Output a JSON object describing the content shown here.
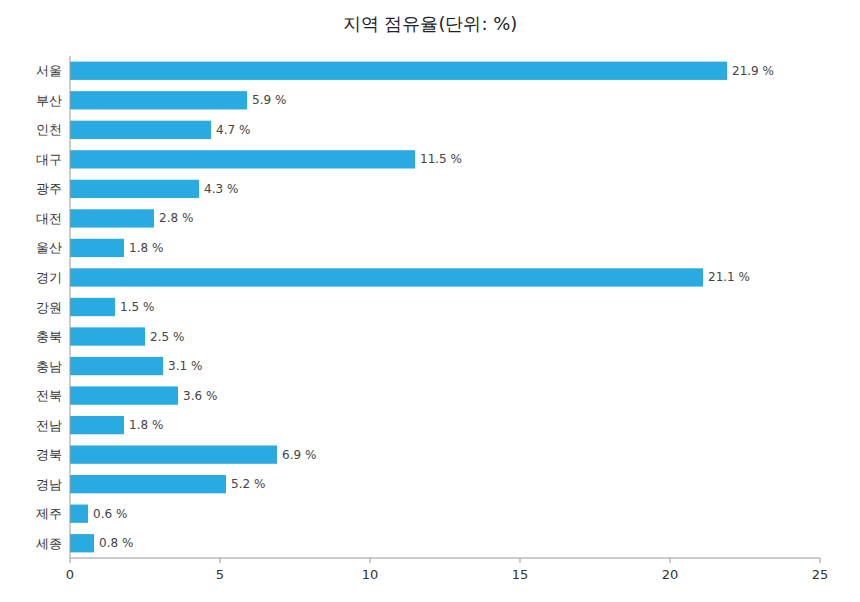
{
  "chart_data": {
    "type": "bar",
    "orientation": "horizontal",
    "title": "지역 점유율(단위: %)",
    "categories": [
      "세종",
      "제주",
      "경남",
      "경북",
      "전남",
      "전북",
      "충남",
      "충북",
      "강원",
      "경기",
      "울산",
      "대전",
      "광주",
      "대구",
      "인천",
      "부산",
      "서울"
    ],
    "values": [
      0.8,
      0.6,
      5.2,
      6.9,
      1.8,
      3.6,
      3.1,
      2.5,
      1.5,
      21.1,
      1.8,
      2.8,
      4.3,
      11.5,
      4.7,
      5.9,
      21.9
    ],
    "value_labels": [
      "0.8 %",
      "0.6 %",
      "5.2 %",
      "6.9 %",
      "1.8 %",
      "3.6 %",
      "3.1 %",
      "2.5 %",
      "1.5 %",
      "21.1 %",
      "1.8 %",
      "2.8 %",
      "4.3 %",
      "11.5 %",
      "4.7 %",
      "5.9 %",
      "21.9 %"
    ],
    "data_labels": true,
    "color": "#29ABE2",
    "xlim": [
      0,
      25
    ],
    "xticks": [
      0,
      5,
      10,
      15,
      20,
      25
    ],
    "grid": false
  }
}
